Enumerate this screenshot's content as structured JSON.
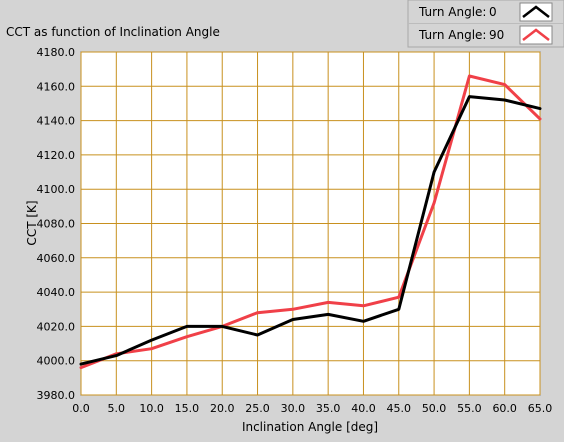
{
  "chart_data": {
    "type": "line",
    "title": "CCT as function of Inclination Angle",
    "xlabel": "Inclination Angle [deg]",
    "ylabel": "CCT [K]",
    "xlim": [
      0,
      65
    ],
    "ylim": [
      3980,
      4180
    ],
    "grid": true,
    "legend_position": "top-right",
    "x_ticks": [
      "0.0",
      "5.0",
      "10.0",
      "15.0",
      "20.0",
      "25.0",
      "30.0",
      "35.0",
      "40.0",
      "45.0",
      "50.0",
      "55.0",
      "60.0",
      "65.0"
    ],
    "y_ticks": [
      "3980.0",
      "4000.0",
      "4020.0",
      "4040.0",
      "4060.0",
      "4080.0",
      "4100.0",
      "4120.0",
      "4140.0",
      "4160.0",
      "4180.0"
    ],
    "x": [
      0,
      5,
      10,
      15,
      20,
      25,
      30,
      35,
      40,
      45,
      50,
      55,
      60,
      65
    ],
    "series": [
      {
        "name": "Turn Angle:",
        "legend_value": "0",
        "color": "#000000",
        "values": [
          3998,
          4003,
          4012,
          4020,
          4020,
          4015,
          4024,
          4027,
          4023,
          4030,
          4110,
          4154,
          4152,
          4147
        ]
      },
      {
        "name": "Turn Angle:",
        "legend_value": "90",
        "color": "#f04048",
        "values": [
          3996,
          4004,
          4007,
          4014,
          4020,
          4028,
          4030,
          4034,
          4032,
          4037,
          4092,
          4166,
          4161,
          4141
        ]
      }
    ]
  },
  "colors": {
    "plot_background": "#ffffff",
    "grid": "#c8901e",
    "frame": "#d4d4d4"
  }
}
